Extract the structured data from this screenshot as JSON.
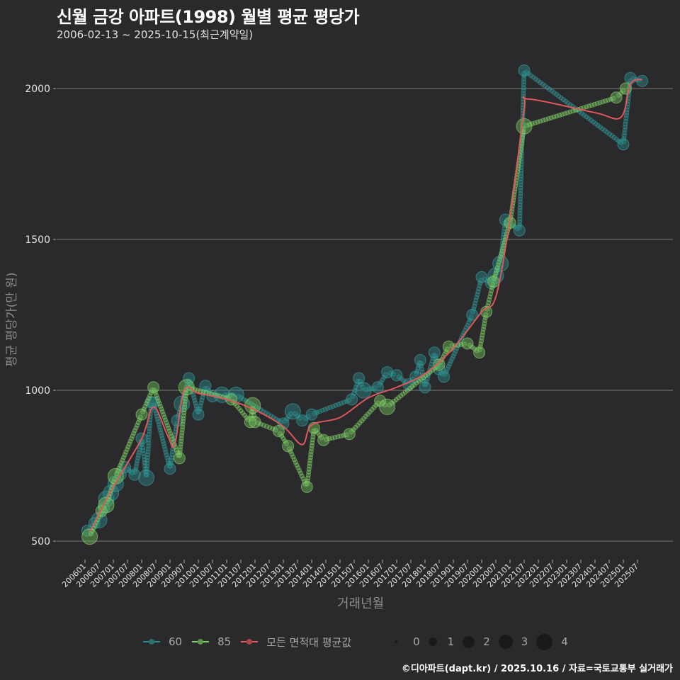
{
  "header": {
    "title": "신월 금강 아파트(1998) 월별 평균 평당가",
    "subtitle": "2006-02-13 ~ 2025-10-15(최근계약일)"
  },
  "axes": {
    "ylabel": "평균 평당가(만 원)",
    "xlabel": "거래년월"
  },
  "legend": {
    "series": [
      {
        "label": "60",
        "color": "#2a8a8a"
      },
      {
        "label": "85",
        "color": "#7fd36a"
      },
      {
        "label": "모든 면적대 평균값",
        "color": "#e0575c"
      }
    ],
    "sizes": [
      "0",
      "1",
      "2",
      "3",
      "4"
    ]
  },
  "caption": "©디아파트(dapt.kr) / 2025.10.16 / 자료=국토교통부 실거래가",
  "chart_data": {
    "type": "scatter",
    "title": "신월 금강 아파트(1998) 월별 평균 평당가",
    "subtitle": "2006-02-13 ~ 2025-10-15(최근계약일)",
    "xlabel": "거래년월",
    "ylabel": "평균 평당가(만 원)",
    "ylim": [
      430,
      2110
    ],
    "yticks": [
      500,
      1000,
      1500,
      2000
    ],
    "xticks": [
      "200601",
      "200607",
      "200701",
      "200707",
      "200801",
      "200807",
      "200901",
      "200907",
      "201001",
      "201007",
      "201101",
      "201107",
      "201201",
      "201207",
      "201301",
      "201307",
      "201401",
      "201407",
      "201501",
      "201507",
      "201601",
      "201607",
      "201701",
      "201707",
      "201801",
      "201807",
      "201901",
      "201907",
      "202001",
      "202007",
      "202101",
      "202107",
      "202201",
      "202207",
      "202301",
      "202307",
      "202401",
      "202407",
      "202501",
      "202507"
    ],
    "grid": true,
    "legend_position": "bottom",
    "series": [
      {
        "name": "60",
        "color": "#2a8a8a",
        "points": [
          {
            "x": "200602",
            "y": 535,
            "size": 2
          },
          {
            "x": "200605",
            "y": 560,
            "size": 2
          },
          {
            "x": "200607",
            "y": 570,
            "size": 3
          },
          {
            "x": "200609",
            "y": 610,
            "size": 2
          },
          {
            "x": "200610",
            "y": 640,
            "size": 3
          },
          {
            "x": "200612",
            "y": 660,
            "size": 3
          },
          {
            "x": "200702",
            "y": 690,
            "size": 3
          },
          {
            "x": "200704",
            "y": 720,
            "size": 2
          },
          {
            "x": "200706",
            "y": 745,
            "size": 2
          },
          {
            "x": "200710",
            "y": 720,
            "size": 2
          },
          {
            "x": "200801",
            "y": 840,
            "size": 2
          },
          {
            "x": "200803",
            "y": 710,
            "size": 3
          },
          {
            "x": "200805",
            "y": 960,
            "size": 2
          },
          {
            "x": "200806",
            "y": 960,
            "size": 2
          },
          {
            "x": "200901",
            "y": 740,
            "size": 2
          },
          {
            "x": "200904",
            "y": 900,
            "size": 2
          },
          {
            "x": "200906",
            "y": 955,
            "size": 3
          },
          {
            "x": "200909",
            "y": 1040,
            "size": 2
          },
          {
            "x": "201001",
            "y": 920,
            "size": 2
          },
          {
            "x": "201004",
            "y": 1015,
            "size": 2
          },
          {
            "x": "201007",
            "y": 980,
            "size": 2
          },
          {
            "x": "201011",
            "y": 985,
            "size": 3
          },
          {
            "x": "201105",
            "y": 985,
            "size": 3
          },
          {
            "x": "201301",
            "y": 890,
            "size": 2
          },
          {
            "x": "201305",
            "y": 930,
            "size": 3
          },
          {
            "x": "201309",
            "y": 900,
            "size": 2
          },
          {
            "x": "201401",
            "y": 920,
            "size": 2
          },
          {
            "x": "201506",
            "y": 970,
            "size": 2
          },
          {
            "x": "201509",
            "y": 1040,
            "size": 2
          },
          {
            "x": "201511",
            "y": 1000,
            "size": 3
          },
          {
            "x": "201605",
            "y": 1010,
            "size": 2
          },
          {
            "x": "201609",
            "y": 1060,
            "size": 2
          },
          {
            "x": "201701",
            "y": 1050,
            "size": 2
          },
          {
            "x": "201706",
            "y": 1020,
            "size": 2
          },
          {
            "x": "201709",
            "y": 1045,
            "size": 2
          },
          {
            "x": "201711",
            "y": 1100,
            "size": 2
          },
          {
            "x": "201801",
            "y": 1010,
            "size": 2
          },
          {
            "x": "201805",
            "y": 1125,
            "size": 2
          },
          {
            "x": "201807",
            "y": 1070,
            "size": 2
          },
          {
            "x": "201809",
            "y": 1045,
            "size": 2
          },
          {
            "x": "201909",
            "y": 1250,
            "size": 2
          },
          {
            "x": "202001",
            "y": 1375,
            "size": 2
          },
          {
            "x": "202005",
            "y": 1355,
            "size": 2
          },
          {
            "x": "202007",
            "y": 1380,
            "size": 3
          },
          {
            "x": "202009",
            "y": 1420,
            "size": 3
          },
          {
            "x": "202011",
            "y": 1565,
            "size": 2
          },
          {
            "x": "202105",
            "y": 1530,
            "size": 2
          },
          {
            "x": "202107",
            "y": 2060,
            "size": 2
          },
          {
            "x": "202501",
            "y": 1815,
            "size": 2
          },
          {
            "x": "202504",
            "y": 2035,
            "size": 2
          },
          {
            "x": "202509",
            "y": 2025,
            "size": 2
          }
        ]
      },
      {
        "name": "85",
        "color": "#7fd36a",
        "points": [
          {
            "x": "200603",
            "y": 515,
            "size": 3
          },
          {
            "x": "200608",
            "y": 600,
            "size": 2
          },
          {
            "x": "200610",
            "y": 620,
            "size": 3
          },
          {
            "x": "200702",
            "y": 715,
            "size": 3
          },
          {
            "x": "200801",
            "y": 920,
            "size": 2
          },
          {
            "x": "200806",
            "y": 1010,
            "size": 2
          },
          {
            "x": "200905",
            "y": 775,
            "size": 2
          },
          {
            "x": "200908",
            "y": 1010,
            "size": 3
          },
          {
            "x": "201103",
            "y": 970,
            "size": 2
          },
          {
            "x": "201111",
            "y": 895,
            "size": 2
          },
          {
            "x": "201112",
            "y": 950,
            "size": 3
          },
          {
            "x": "201201",
            "y": 895,
            "size": 2
          },
          {
            "x": "201211",
            "y": 865,
            "size": 2
          },
          {
            "x": "201303",
            "y": 815,
            "size": 2
          },
          {
            "x": "201311",
            "y": 680,
            "size": 2
          },
          {
            "x": "201402",
            "y": 875,
            "size": 2
          },
          {
            "x": "201406",
            "y": 835,
            "size": 2
          },
          {
            "x": "201505",
            "y": 855,
            "size": 2
          },
          {
            "x": "201606",
            "y": 965,
            "size": 2
          },
          {
            "x": "201609",
            "y": 945,
            "size": 3
          },
          {
            "x": "201807",
            "y": 1085,
            "size": 2
          },
          {
            "x": "201811",
            "y": 1145,
            "size": 2
          },
          {
            "x": "201907",
            "y": 1155,
            "size": 2
          },
          {
            "x": "201912",
            "y": 1125,
            "size": 2
          },
          {
            "x": "202003",
            "y": 1260,
            "size": 2
          },
          {
            "x": "202006",
            "y": 1360,
            "size": 2
          },
          {
            "x": "202101",
            "y": 1555,
            "size": 2
          },
          {
            "x": "202107",
            "y": 1875,
            "size": 3
          },
          {
            "x": "202410",
            "y": 1970,
            "size": 2
          },
          {
            "x": "202502",
            "y": 2000,
            "size": 2
          }
        ]
      },
      {
        "name": "모든 면적대 평균값",
        "type": "line",
        "color": "#e0575c",
        "points": [
          {
            "x": "200603",
            "y": 530
          },
          {
            "x": "200701",
            "y": 680
          },
          {
            "x": "200801",
            "y": 840
          },
          {
            "x": "200806",
            "y": 945
          },
          {
            "x": "200812",
            "y": 850
          },
          {
            "x": "200903",
            "y": 820
          },
          {
            "x": "200907",
            "y": 1000
          },
          {
            "x": "201001",
            "y": 990
          },
          {
            "x": "201101",
            "y": 970
          },
          {
            "x": "201201",
            "y": 935
          },
          {
            "x": "201301",
            "y": 880
          },
          {
            "x": "201309",
            "y": 820
          },
          {
            "x": "201401",
            "y": 885
          },
          {
            "x": "201501",
            "y": 910
          },
          {
            "x": "201601",
            "y": 975
          },
          {
            "x": "201701",
            "y": 1010
          },
          {
            "x": "201801",
            "y": 1055
          },
          {
            "x": "201901",
            "y": 1140
          },
          {
            "x": "202001",
            "y": 1260
          },
          {
            "x": "202007",
            "y": 1310
          },
          {
            "x": "202101",
            "y": 1570
          },
          {
            "x": "202107",
            "y": 1930
          },
          {
            "x": "202109",
            "y": 1965
          },
          {
            "x": "202401",
            "y": 1920
          },
          {
            "x": "202412",
            "y": 1905
          },
          {
            "x": "202504",
            "y": 2015
          },
          {
            "x": "202509",
            "y": 2030
          }
        ]
      }
    ]
  }
}
